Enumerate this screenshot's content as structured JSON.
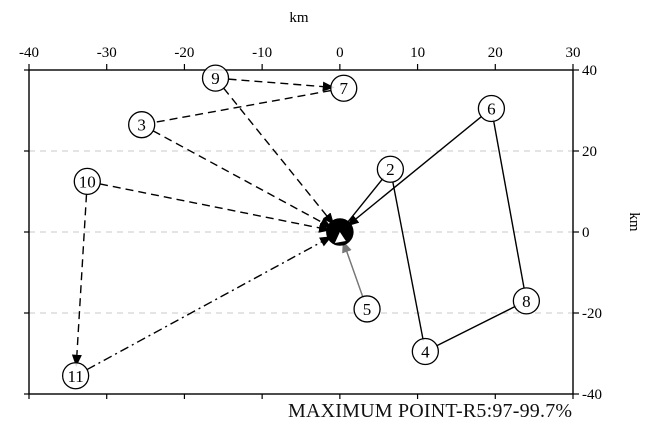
{
  "axes": {
    "x_unit": "km",
    "y_unit": "km",
    "x_ticks": [
      -40,
      -30,
      -20,
      -10,
      0,
      10,
      20,
      30
    ],
    "y_ticks": [
      40,
      20,
      0,
      -20,
      -40
    ],
    "xlim": [
      -40,
      30
    ],
    "ylim": [
      -40,
      40
    ],
    "gridlines_y": [
      20,
      0,
      -20
    ]
  },
  "center": {
    "x": 0,
    "y": 0
  },
  "points": [
    {
      "id": "2",
      "label": "2",
      "x": 6.5,
      "y": 15.5
    },
    {
      "id": "3",
      "label": "3",
      "x": -25.5,
      "y": 26.5
    },
    {
      "id": "4",
      "label": "4",
      "x": 11,
      "y": -29.5
    },
    {
      "id": "5",
      "label": "5",
      "x": 3.5,
      "y": -19
    },
    {
      "id": "6",
      "label": "6",
      "x": 19.5,
      "y": 30.5
    },
    {
      "id": "7",
      "label": "7",
      "x": 0.5,
      "y": 35.5
    },
    {
      "id": "8",
      "label": "8",
      "x": 24,
      "y": -17
    },
    {
      "id": "9",
      "label": "9",
      "x": -16,
      "y": 38
    },
    {
      "id": "10",
      "label": "10",
      "x": -32.5,
      "y": 12.5
    },
    {
      "id": "11",
      "label": "11",
      "x": -34,
      "y": -35.5
    }
  ],
  "paths": [
    {
      "from": "center",
      "to": "2",
      "style": "solid"
    },
    {
      "from": "2",
      "to": "4",
      "style": "solid"
    },
    {
      "from": "4",
      "to": "8",
      "style": "solid"
    },
    {
      "from": "8",
      "to": "6",
      "style": "solid"
    },
    {
      "from": "6",
      "to": "center",
      "style": "solid",
      "arrow": true
    },
    {
      "from": "center",
      "to": "5",
      "style": "gray"
    },
    {
      "from": "5",
      "to": "center",
      "style": "gray",
      "arrow": true
    },
    {
      "from": "9",
      "to": "7",
      "style": "dashed",
      "arrow": true
    },
    {
      "from": "7",
      "to": "3",
      "style": "dashed"
    },
    {
      "from": "3",
      "to": "center",
      "style": "dashed",
      "arrow": true
    },
    {
      "from": "9",
      "to": "center",
      "style": "dashed",
      "arrow": true
    },
    {
      "from": "10",
      "to": "center",
      "style": "dashed",
      "arrow": true
    },
    {
      "from": "10",
      "to": "11",
      "style": "dashed",
      "arrow": true
    },
    {
      "from": "11",
      "to": "center",
      "style": "dashdot",
      "arrow": true
    }
  ],
  "caption": "MAXIMUM  POINT-R5:97-99.7%",
  "colors": {
    "line": "#000000",
    "gray_line": "#777777",
    "grid": "#c8c8c8"
  }
}
